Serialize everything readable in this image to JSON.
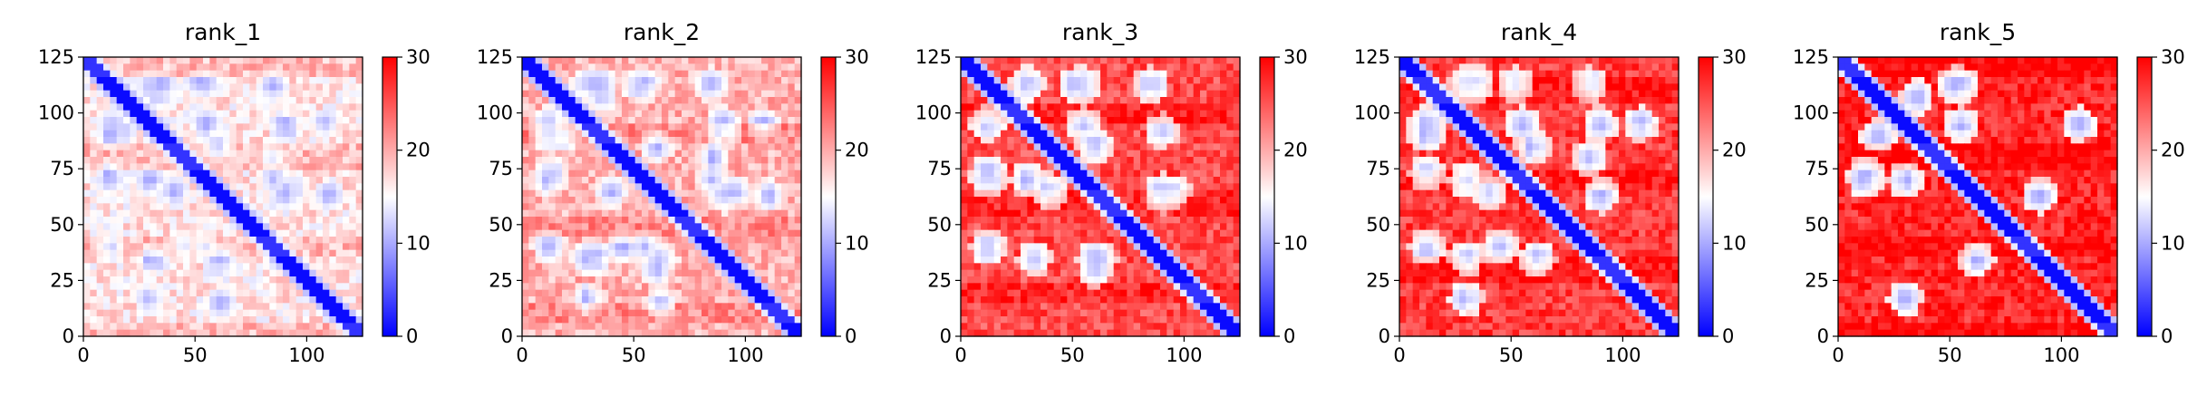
{
  "chart_data": [
    {
      "type": "heatmap",
      "title": "rank_1",
      "xlabel": "",
      "ylabel": "",
      "xlim": [
        0,
        125
      ],
      "ylim": [
        125,
        0
      ],
      "x_ticks": [
        "0",
        "50",
        "100"
      ],
      "y_ticks": [
        "0",
        "25",
        "50",
        "75",
        "100",
        "125"
      ],
      "colorbar": {
        "min": 0,
        "max": 30,
        "ticks": [
          "0",
          "10",
          "20",
          "30"
        ],
        "colormap": [
          "#0000ff",
          "#ffffff",
          "#ff0000"
        ]
      },
      "background_level": 0.55,
      "contact_density": 1.0
    },
    {
      "type": "heatmap",
      "title": "rank_2",
      "xlabel": "",
      "ylabel": "",
      "xlim": [
        0,
        125
      ],
      "ylim": [
        125,
        0
      ],
      "x_ticks": [
        "0",
        "50",
        "100"
      ],
      "y_ticks": [
        "0",
        "25",
        "50",
        "75",
        "100",
        "125"
      ],
      "colorbar": {
        "min": 0,
        "max": 30,
        "ticks": [
          "0",
          "10",
          "20",
          "30"
        ],
        "colormap": [
          "#0000ff",
          "#ffffff",
          "#ff0000"
        ]
      },
      "background_level": 0.65,
      "contact_density": 0.9
    },
    {
      "type": "heatmap",
      "title": "rank_3",
      "xlabel": "",
      "ylabel": "",
      "xlim": [
        0,
        125
      ],
      "ylim": [
        125,
        0
      ],
      "x_ticks": [
        "0",
        "50",
        "100"
      ],
      "y_ticks": [
        "0",
        "25",
        "50",
        "75",
        "100",
        "125"
      ],
      "colorbar": {
        "min": 0,
        "max": 30,
        "ticks": [
          "0",
          "10",
          "20",
          "30"
        ],
        "colormap": [
          "#0000ff",
          "#ffffff",
          "#ff0000"
        ]
      },
      "background_level": 0.85,
      "contact_density": 0.55
    },
    {
      "type": "heatmap",
      "title": "rank_4",
      "xlabel": "",
      "ylabel": "",
      "xlim": [
        0,
        125
      ],
      "ylim": [
        125,
        0
      ],
      "x_ticks": [
        "0",
        "50",
        "100"
      ],
      "y_ticks": [
        "0",
        "25",
        "50",
        "75",
        "100",
        "125"
      ],
      "colorbar": {
        "min": 0,
        "max": 30,
        "ticks": [
          "0",
          "10",
          "20",
          "30"
        ],
        "colormap": [
          "#0000ff",
          "#ffffff",
          "#ff0000"
        ]
      },
      "background_level": 0.88,
      "contact_density": 0.5
    },
    {
      "type": "heatmap",
      "title": "rank_5",
      "xlabel": "",
      "ylabel": "",
      "xlim": [
        0,
        125
      ],
      "ylim": [
        125,
        0
      ],
      "x_ticks": [
        "0",
        "50",
        "100"
      ],
      "y_ticks": [
        "0",
        "25",
        "50",
        "75",
        "100",
        "125"
      ],
      "colorbar": {
        "min": 0,
        "max": 30,
        "ticks": [
          "0",
          "10",
          "20",
          "30"
        ],
        "colormap": [
          "#0000ff",
          "#ffffff",
          "#ff0000"
        ]
      },
      "background_level": 0.92,
      "contact_density": 0.2
    }
  ]
}
